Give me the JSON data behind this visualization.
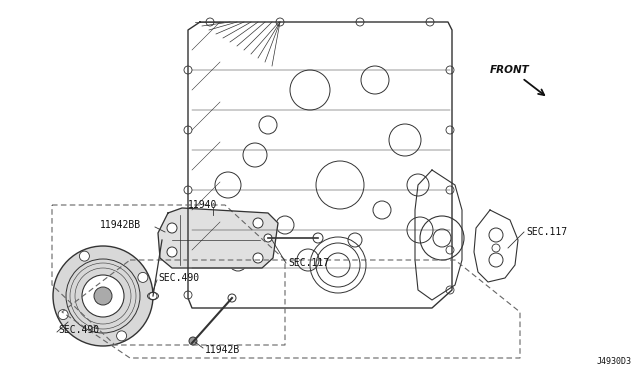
{
  "background_color": "#ffffff",
  "diagram_id": "J4930D3",
  "labels": {
    "front": "FRONT",
    "11940": "11940",
    "11942BB": "11942BB",
    "11942B": "11942B",
    "SEC117_1": "SEC.117",
    "SEC117_2": "SEC.117",
    "SEC490_1": "SEC.490",
    "SEC490_2": "SEC.490",
    "diagram_code": "J4930D3"
  },
  "line_color": "#333333",
  "text_color": "#111111",
  "font_size_small": 6.5,
  "font_size_medium": 7.5,
  "font_size_label": 7.0
}
